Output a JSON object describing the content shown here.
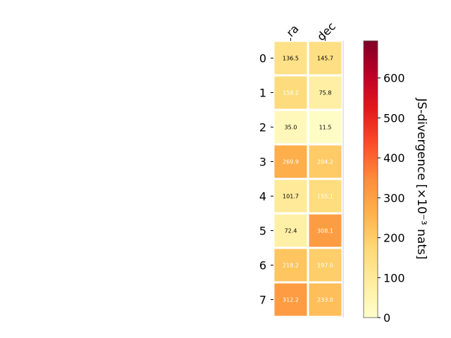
{
  "chart_data": {
    "type": "heatmap",
    "x_categories": [
      "ra",
      "dec"
    ],
    "y_categories": [
      "0",
      "1",
      "2",
      "3",
      "4",
      "5",
      "6",
      "7"
    ],
    "values": [
      [
        136.5,
        145.7
      ],
      [
        158.2,
        75.8
      ],
      [
        35.0,
        11.5
      ],
      [
        269.9,
        204.2
      ],
      [
        101.7,
        155.1
      ],
      [
        72.4,
        308.1
      ],
      [
        218.2,
        197.0
      ],
      [
        312.2,
        233.0
      ]
    ],
    "cell_labels": [
      [
        "136.5",
        "145.7"
      ],
      [
        "158.2",
        "75.8"
      ],
      [
        "35.0",
        "11.5"
      ],
      [
        "269.9",
        "204.2"
      ],
      [
        "101.7",
        "155.1"
      ],
      [
        "72.4",
        "308.1"
      ],
      [
        "218.2",
        "197.0"
      ],
      [
        "312.2",
        "233.0"
      ]
    ],
    "colorbar": {
      "label": "JS-divergence [×10⁻³ nats]",
      "range": [
        0,
        693
      ],
      "ticks": [
        "0",
        "100",
        "200",
        "300",
        "400",
        "500",
        "600"
      ],
      "colormap": "YlOrRd"
    },
    "colors": {
      "label_dark": "#000000",
      "label_light": "#ffffff"
    }
  }
}
